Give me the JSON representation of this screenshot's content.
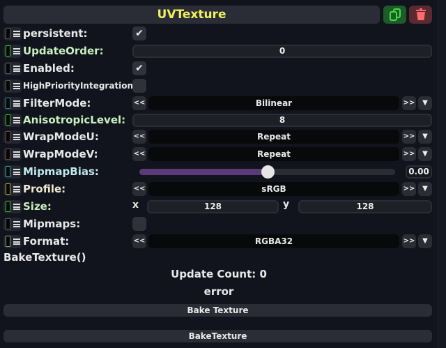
{
  "header": {
    "title": "UVTexture",
    "copy_icon": "copy-icon",
    "delete_icon": "trash-icon"
  },
  "colors": {
    "title": "#f0f060",
    "copy_bg": "#1f5a2a",
    "copy_fg": "#40e040",
    "delete_bg": "#5a2a30",
    "delete_fg": "#ff6a6a",
    "slider_fill": "#5a3a78"
  },
  "rows": {
    "persistent": {
      "label": "persistent:",
      "checked": true
    },
    "update_order": {
      "label": "UpdateOrder:",
      "value": "0"
    },
    "enabled": {
      "label": "Enabled:",
      "checked": true
    },
    "high_priority": {
      "label": "HighPriorityIntegration:",
      "checked": false
    },
    "filter_mode": {
      "label": "FilterMode:",
      "value": "Bilinear"
    },
    "aniso": {
      "label": "AnisotropicLevel:",
      "value": "8"
    },
    "wrap_u": {
      "label": "WrapModeU:",
      "value": "Repeat"
    },
    "wrap_v": {
      "label": "WrapModeV:",
      "value": "Repeat"
    },
    "mipmap_bias": {
      "label": "MipmapBias:",
      "value": "0.00",
      "slider_fraction": 0.5
    },
    "profile": {
      "label": "Profile:",
      "value": "sRGB"
    },
    "size": {
      "label": "Size:",
      "x_label": "x",
      "x": "128",
      "y_label": "y",
      "y": "128"
    },
    "mipmaps": {
      "label": "Mipmaps:",
      "checked": false
    },
    "format": {
      "label": "Format:",
      "value": "RGBA32"
    }
  },
  "enum_buttons": {
    "prev": "<<",
    "next": ">>",
    "dropdown": "▼"
  },
  "check_glyph": "✔",
  "method": {
    "title": "BakeTexture()",
    "update_count": "Update Count: 0",
    "status": "error",
    "bake_button": "Bake Texture",
    "invoke_button": "BakeTexture"
  }
}
